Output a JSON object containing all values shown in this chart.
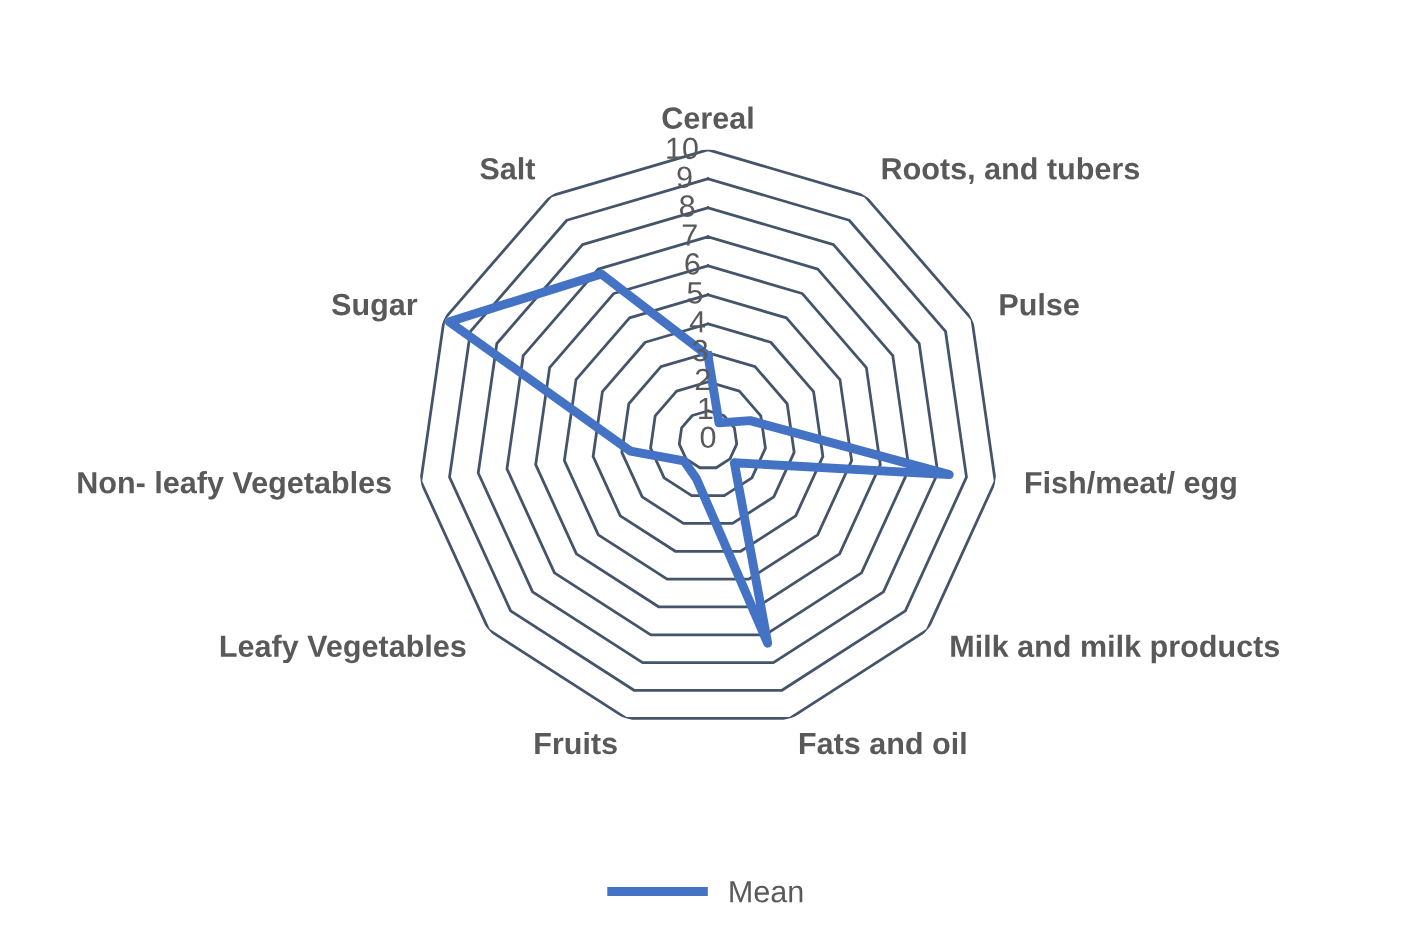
{
  "chart_data": {
    "type": "radar",
    "categories": [
      "Cereal",
      "Roots, and tubers",
      "Pulse",
      "Fish/meat/ egg",
      "Milk and milk products",
      "Fats and oil",
      "Fruits",
      "Leafy Vegetables",
      "Non- leafy Vegetables",
      "Sugar",
      "Salt"
    ],
    "series": [
      {
        "name": "Mean",
        "color": "#4472c4",
        "values": [
          2.9,
          0.7,
          1.6,
          8.4,
          1.2,
          7.3,
          1.4,
          1.1,
          2.7,
          9.8,
          6.8
        ]
      }
    ],
    "ylim": [
      0,
      10
    ],
    "yticks": [
      0,
      1,
      2,
      3,
      4,
      5,
      6,
      7,
      8,
      9,
      10
    ],
    "grid": true,
    "legend": "bottom"
  }
}
